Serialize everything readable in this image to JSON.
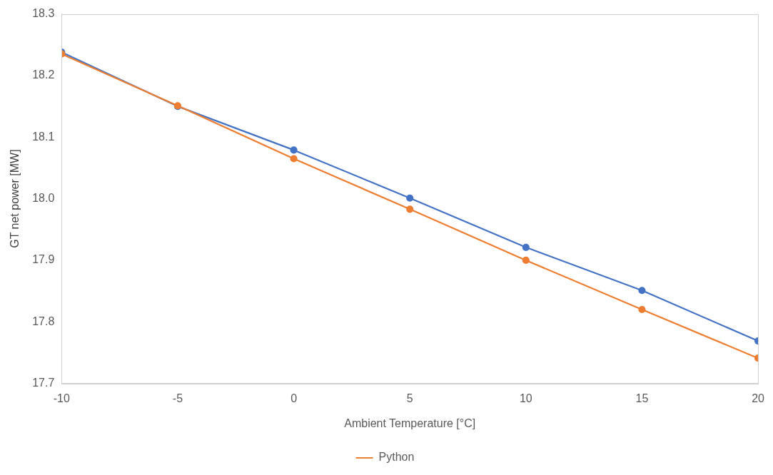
{
  "chart_data": {
    "type": "line",
    "xlabel": "Ambient Temperature [°C]",
    "ylabel": "GT net power [MW]",
    "x": [
      -10,
      -5,
      0,
      5,
      10,
      15,
      20
    ],
    "series": [
      {
        "color": "#4472c4",
        "values": [
          18.238,
          18.15,
          18.079,
          18.001,
          17.921,
          17.851,
          17.769
        ]
      },
      {
        "name": "Python",
        "color": "#ed7d31",
        "values": [
          18.235,
          18.151,
          18.065,
          17.983,
          17.9,
          17.82,
          17.741
        ]
      }
    ],
    "xlim": [
      -10,
      20
    ],
    "xticks": [
      -10,
      -5,
      0,
      5,
      10,
      15,
      20
    ],
    "ylim": [
      17.7,
      18.3
    ],
    "yticks": [
      17.7,
      17.8,
      17.9,
      {
        "value": 18,
        "label": "18.0"
      },
      18.1,
      18.2,
      18.3
    ],
    "grid": false,
    "legend": "bottom",
    "marker": "circle",
    "line_style": "solid"
  }
}
